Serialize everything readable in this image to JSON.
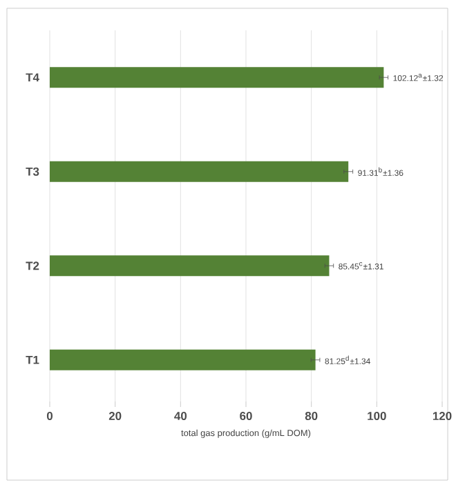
{
  "chart_data": {
    "type": "bar",
    "orientation": "horizontal",
    "xlabel": "total gas production (g/mL DOM)",
    "categories": [
      "T4",
      "T3",
      "T2",
      "T1"
    ],
    "values": [
      102.12,
      91.31,
      85.45,
      81.25
    ],
    "errors": [
      1.32,
      1.36,
      1.31,
      1.34
    ],
    "value_labels": [
      "102.12$^{a}$±1.32",
      "91.31$^{b}$±1.36",
      "85.45$^{c}$±1.31",
      "81.25$^{d}$±1.34"
    ],
    "color": "#548235",
    "xlim": [
      0,
      120
    ],
    "xticks": [
      0,
      20,
      40,
      60,
      80,
      100,
      120
    ],
    "grid": "x"
  }
}
